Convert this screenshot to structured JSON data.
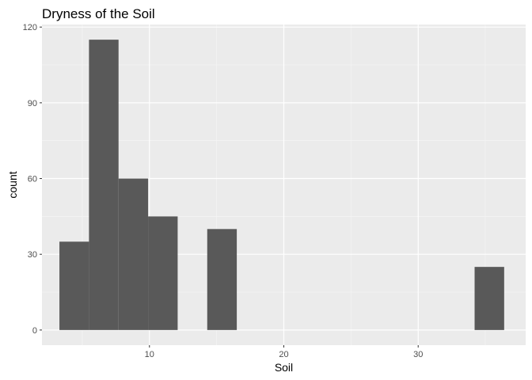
{
  "chart_data": {
    "type": "bar",
    "title": "Dryness of the Soil",
    "xlabel": "Soil",
    "ylabel": "count",
    "xlim": [
      2.0,
      38.0
    ],
    "ylim": [
      -6,
      121
    ],
    "x_ticks": [
      10,
      20,
      30
    ],
    "y_ticks": [
      0,
      30,
      60,
      90,
      120
    ],
    "grid": true,
    "bin_width": 2.2,
    "bins": [
      {
        "x0": 3.3,
        "x1": 5.5,
        "count": 35
      },
      {
        "x0": 5.5,
        "x1": 7.7,
        "count": 115
      },
      {
        "x0": 7.7,
        "x1": 9.9,
        "count": 60
      },
      {
        "x0": 9.9,
        "x1": 12.1,
        "count": 45
      },
      {
        "x0": 14.3,
        "x1": 16.5,
        "count": 40
      },
      {
        "x0": 34.2,
        "x1": 36.4,
        "count": 25
      }
    ],
    "colors": {
      "panel": "#ebebeb",
      "grid_major": "#ffffff",
      "grid_minor": "#f5f5f5",
      "bar": "#595959",
      "tick_text": "#4d4d4d",
      "tick_mark": "#333333"
    }
  }
}
